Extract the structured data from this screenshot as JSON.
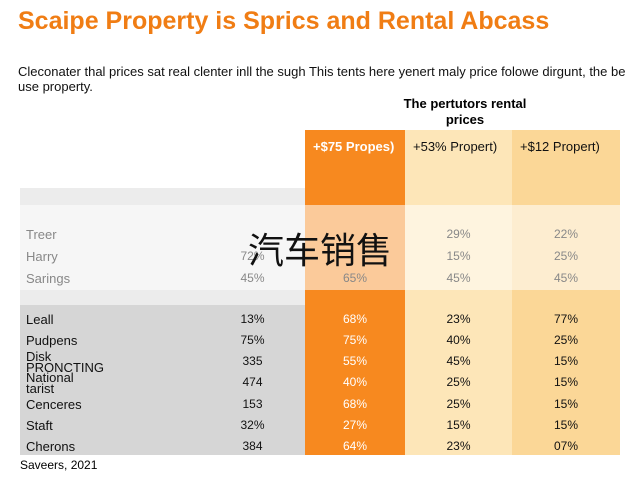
{
  "title": "Scaipe Property is Sprics and Rental Abcass",
  "subtitle": "Cleconater thal prices sat real clenter inll the sugh This tents here yenert maly price folowe dirgunt, the be use property.",
  "group_header": "The pertutors rental prices",
  "columns": [
    "+$75 Propes)",
    "+53% Propert)",
    "+$12 Propert)"
  ],
  "faded_rows": [
    {
      "label": "Treer",
      "cells": [
        null,
        null,
        "29%",
        "22%"
      ]
    },
    {
      "label": "Harry",
      "cells": [
        "72%",
        null,
        "15%",
        "25%"
      ]
    },
    {
      "label": "Sarings",
      "cells": [
        "45%",
        "65%",
        "45%",
        "45%"
      ]
    }
  ],
  "rows": [
    {
      "label": "Leall",
      "cells": [
        "13%",
        "68%",
        "23%",
        "77%"
      ]
    },
    {
      "label": "Pudpens",
      "cells": [
        "75%",
        "75%",
        "40%",
        "25%"
      ]
    },
    {
      "label": "Disk\nPRONCTING",
      "cells": [
        "335",
        "55%",
        "45%",
        "15%"
      ]
    },
    {
      "label": "National\ntarist",
      "cells": [
        "474",
        "40%",
        "25%",
        "15%"
      ]
    },
    {
      "label": "Cenceres",
      "cells": [
        "153",
        "68%",
        "25%",
        "15%"
      ]
    },
    {
      "label": "Staft",
      "cells": [
        "32%",
        "27%",
        "15%",
        "15%"
      ]
    },
    {
      "label": "Cherons",
      "cells": [
        "384",
        "64%",
        "23%",
        "07%"
      ]
    }
  ],
  "source": "Saveers, 2021",
  "watermark": "汽车销售"
}
